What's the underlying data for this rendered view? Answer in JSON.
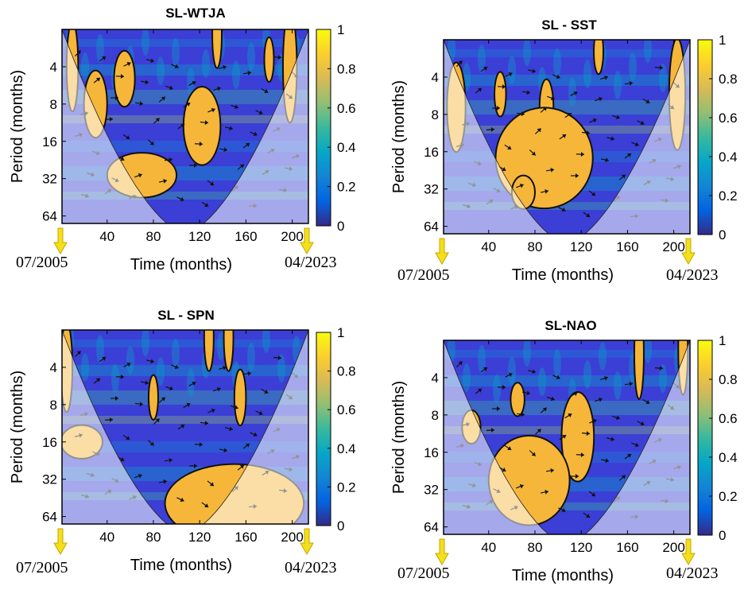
{
  "colors": {
    "colormap": [
      "#352a87",
      "#0363e1",
      "#1485d4",
      "#06a7c6",
      "#38b99e",
      "#92bf73",
      "#d9ba56",
      "#fcce2e",
      "#f9fb0e"
    ],
    "background_low": "#3b3fd6",
    "hotspot": "#f6b63a",
    "arrow": "#111111",
    "date_arrow": "#f2e01a"
  },
  "shared": {
    "xlabel": "Time (months)",
    "ylabel": "Period (months)",
    "xticks": [
      40,
      80,
      120,
      160,
      200
    ],
    "yticks": [
      4,
      8,
      16,
      32,
      64
    ],
    "colorbar_ticks": [
      "0",
      "0.2",
      "0.4",
      "0.6",
      "0.8",
      "1"
    ],
    "start_date": "07/2005",
    "end_date": "04/2023"
  },
  "chart_data": [
    {
      "type": "heatmap",
      "title": "SL-WTJA",
      "xlabel": "Time (months)",
      "ylabel": "Period (months)",
      "x_range": [
        1,
        214
      ],
      "y_range_log2": [
        1,
        6.2
      ],
      "colorbar_range": [
        0,
        1
      ],
      "significant_regions": [
        {
          "time": 10,
          "period": 4,
          "dt": 5,
          "dp": 0.4
        },
        {
          "time": 55,
          "period": 5,
          "dt": 9,
          "dp": 0.25
        },
        {
          "time": 30,
          "period": 8,
          "dt": 10,
          "dp": 0.3
        },
        {
          "time": 122,
          "period": 12,
          "dt": 16,
          "dp": 0.35
        },
        {
          "time": 70,
          "period": 30,
          "dt": 30,
          "dp": 0.2
        },
        {
          "time": 198,
          "period": 4,
          "dt": 6,
          "dp": 0.5
        },
        {
          "time": 180,
          "period": 3.5,
          "dt": 3,
          "dp": 0.2
        },
        {
          "time": 135,
          "period": 2.2,
          "dt": 3,
          "dp": 0.3
        }
      ]
    },
    {
      "type": "heatmap",
      "title": "SL - SST",
      "xlabel": "Time (months)",
      "ylabel": "Period (months)",
      "x_range": [
        1,
        214
      ],
      "y_range_log2": [
        1,
        6.2
      ],
      "colorbar_range": [
        0,
        1
      ],
      "significant_regions": [
        {
          "time": 12,
          "period": 7,
          "dt": 8,
          "dp": 0.4
        },
        {
          "time": 50,
          "period": 5.5,
          "dt": 5,
          "dp": 0.2
        },
        {
          "time": 90,
          "period": 7,
          "dt": 6,
          "dp": 0.25
        },
        {
          "time": 88,
          "period": 18,
          "dt": 42,
          "dp": 0.45
        },
        {
          "time": 70,
          "period": 34,
          "dt": 10,
          "dp": 0.15
        },
        {
          "time": 203,
          "period": 5.5,
          "dt": 7,
          "dp": 0.5
        },
        {
          "time": 135,
          "period": 2.5,
          "dt": 3,
          "dp": 0.2
        }
      ]
    },
    {
      "type": "heatmap",
      "title": "SL - SPN",
      "xlabel": "Time (months)",
      "ylabel": "Period (months)",
      "x_range": [
        1,
        214
      ],
      "y_range_log2": [
        1,
        6.2
      ],
      "colorbar_range": [
        0,
        1
      ],
      "significant_regions": [
        {
          "time": 5,
          "period": 4,
          "dt": 5,
          "dp": 0.4
        },
        {
          "time": 18,
          "period": 16,
          "dt": 18,
          "dp": 0.15
        },
        {
          "time": 150,
          "period": 50,
          "dt": 60,
          "dp": 0.35
        },
        {
          "time": 80,
          "period": 7,
          "dt": 4,
          "dp": 0.2
        },
        {
          "time": 155,
          "period": 7,
          "dt": 5,
          "dp": 0.25
        },
        {
          "time": 128,
          "period": 2.3,
          "dt": 3,
          "dp": 0.3
        },
        {
          "time": 145,
          "period": 2.3,
          "dt": 3,
          "dp": 0.3
        }
      ]
    },
    {
      "type": "heatmap",
      "title": "SL-NAO",
      "xlabel": "Time (months)",
      "ylabel": "Period (months)",
      "x_range": [
        1,
        214
      ],
      "y_range_log2": [
        1,
        6.2
      ],
      "colorbar_range": [
        0,
        1
      ],
      "significant_regions": [
        {
          "time": 25,
          "period": 10,
          "dt": 8,
          "dp": 0.15
        },
        {
          "time": 117,
          "period": 12,
          "dt": 14,
          "dp": 0.4
        },
        {
          "time": 75,
          "period": 27,
          "dt": 35,
          "dp": 0.4
        },
        {
          "time": 65,
          "period": 6,
          "dt": 6,
          "dp": 0.15
        },
        {
          "time": 170,
          "period": 2.6,
          "dt": 4,
          "dp": 0.4
        },
        {
          "time": 208,
          "period": 2.4,
          "dt": 4,
          "dp": 0.4
        }
      ]
    }
  ]
}
